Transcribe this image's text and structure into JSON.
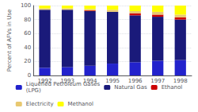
{
  "chart_data": {
    "type": "bar",
    "stacked": true,
    "categories": [
      "1992",
      "1993",
      "1994",
      "1995",
      "1996",
      "1997",
      "1998"
    ],
    "series": [
      {
        "name": "Liquefied Petroleum Gases\n(LPG)",
        "color": "#2222cc",
        "values": [
          11,
          12,
          14,
          17,
          19,
          21,
          22
        ]
      },
      {
        "name": "Natural Gas",
        "color": "#1a1a7a",
        "values": [
          83,
          82,
          78,
          74,
          67,
          63,
          58
        ]
      },
      {
        "name": "Ethanol",
        "color": "#cc0000",
        "values": [
          0,
          0,
          1,
          0,
          3,
          3,
          3
        ]
      },
      {
        "name": "Electricity",
        "color": "#e8c870",
        "values": [
          2,
          2,
          2,
          3,
          3,
          4,
          4
        ]
      },
      {
        "name": "Methanol",
        "color": "#ffff00",
        "values": [
          4,
          4,
          5,
          6,
          8,
          9,
          13
        ]
      }
    ],
    "ylabel": "Percent of AFVs in Use",
    "ylim": [
      0,
      100
    ],
    "yticks": [
      0,
      20,
      40,
      60,
      80,
      100
    ],
    "grid": true,
    "legend": "bottom"
  }
}
